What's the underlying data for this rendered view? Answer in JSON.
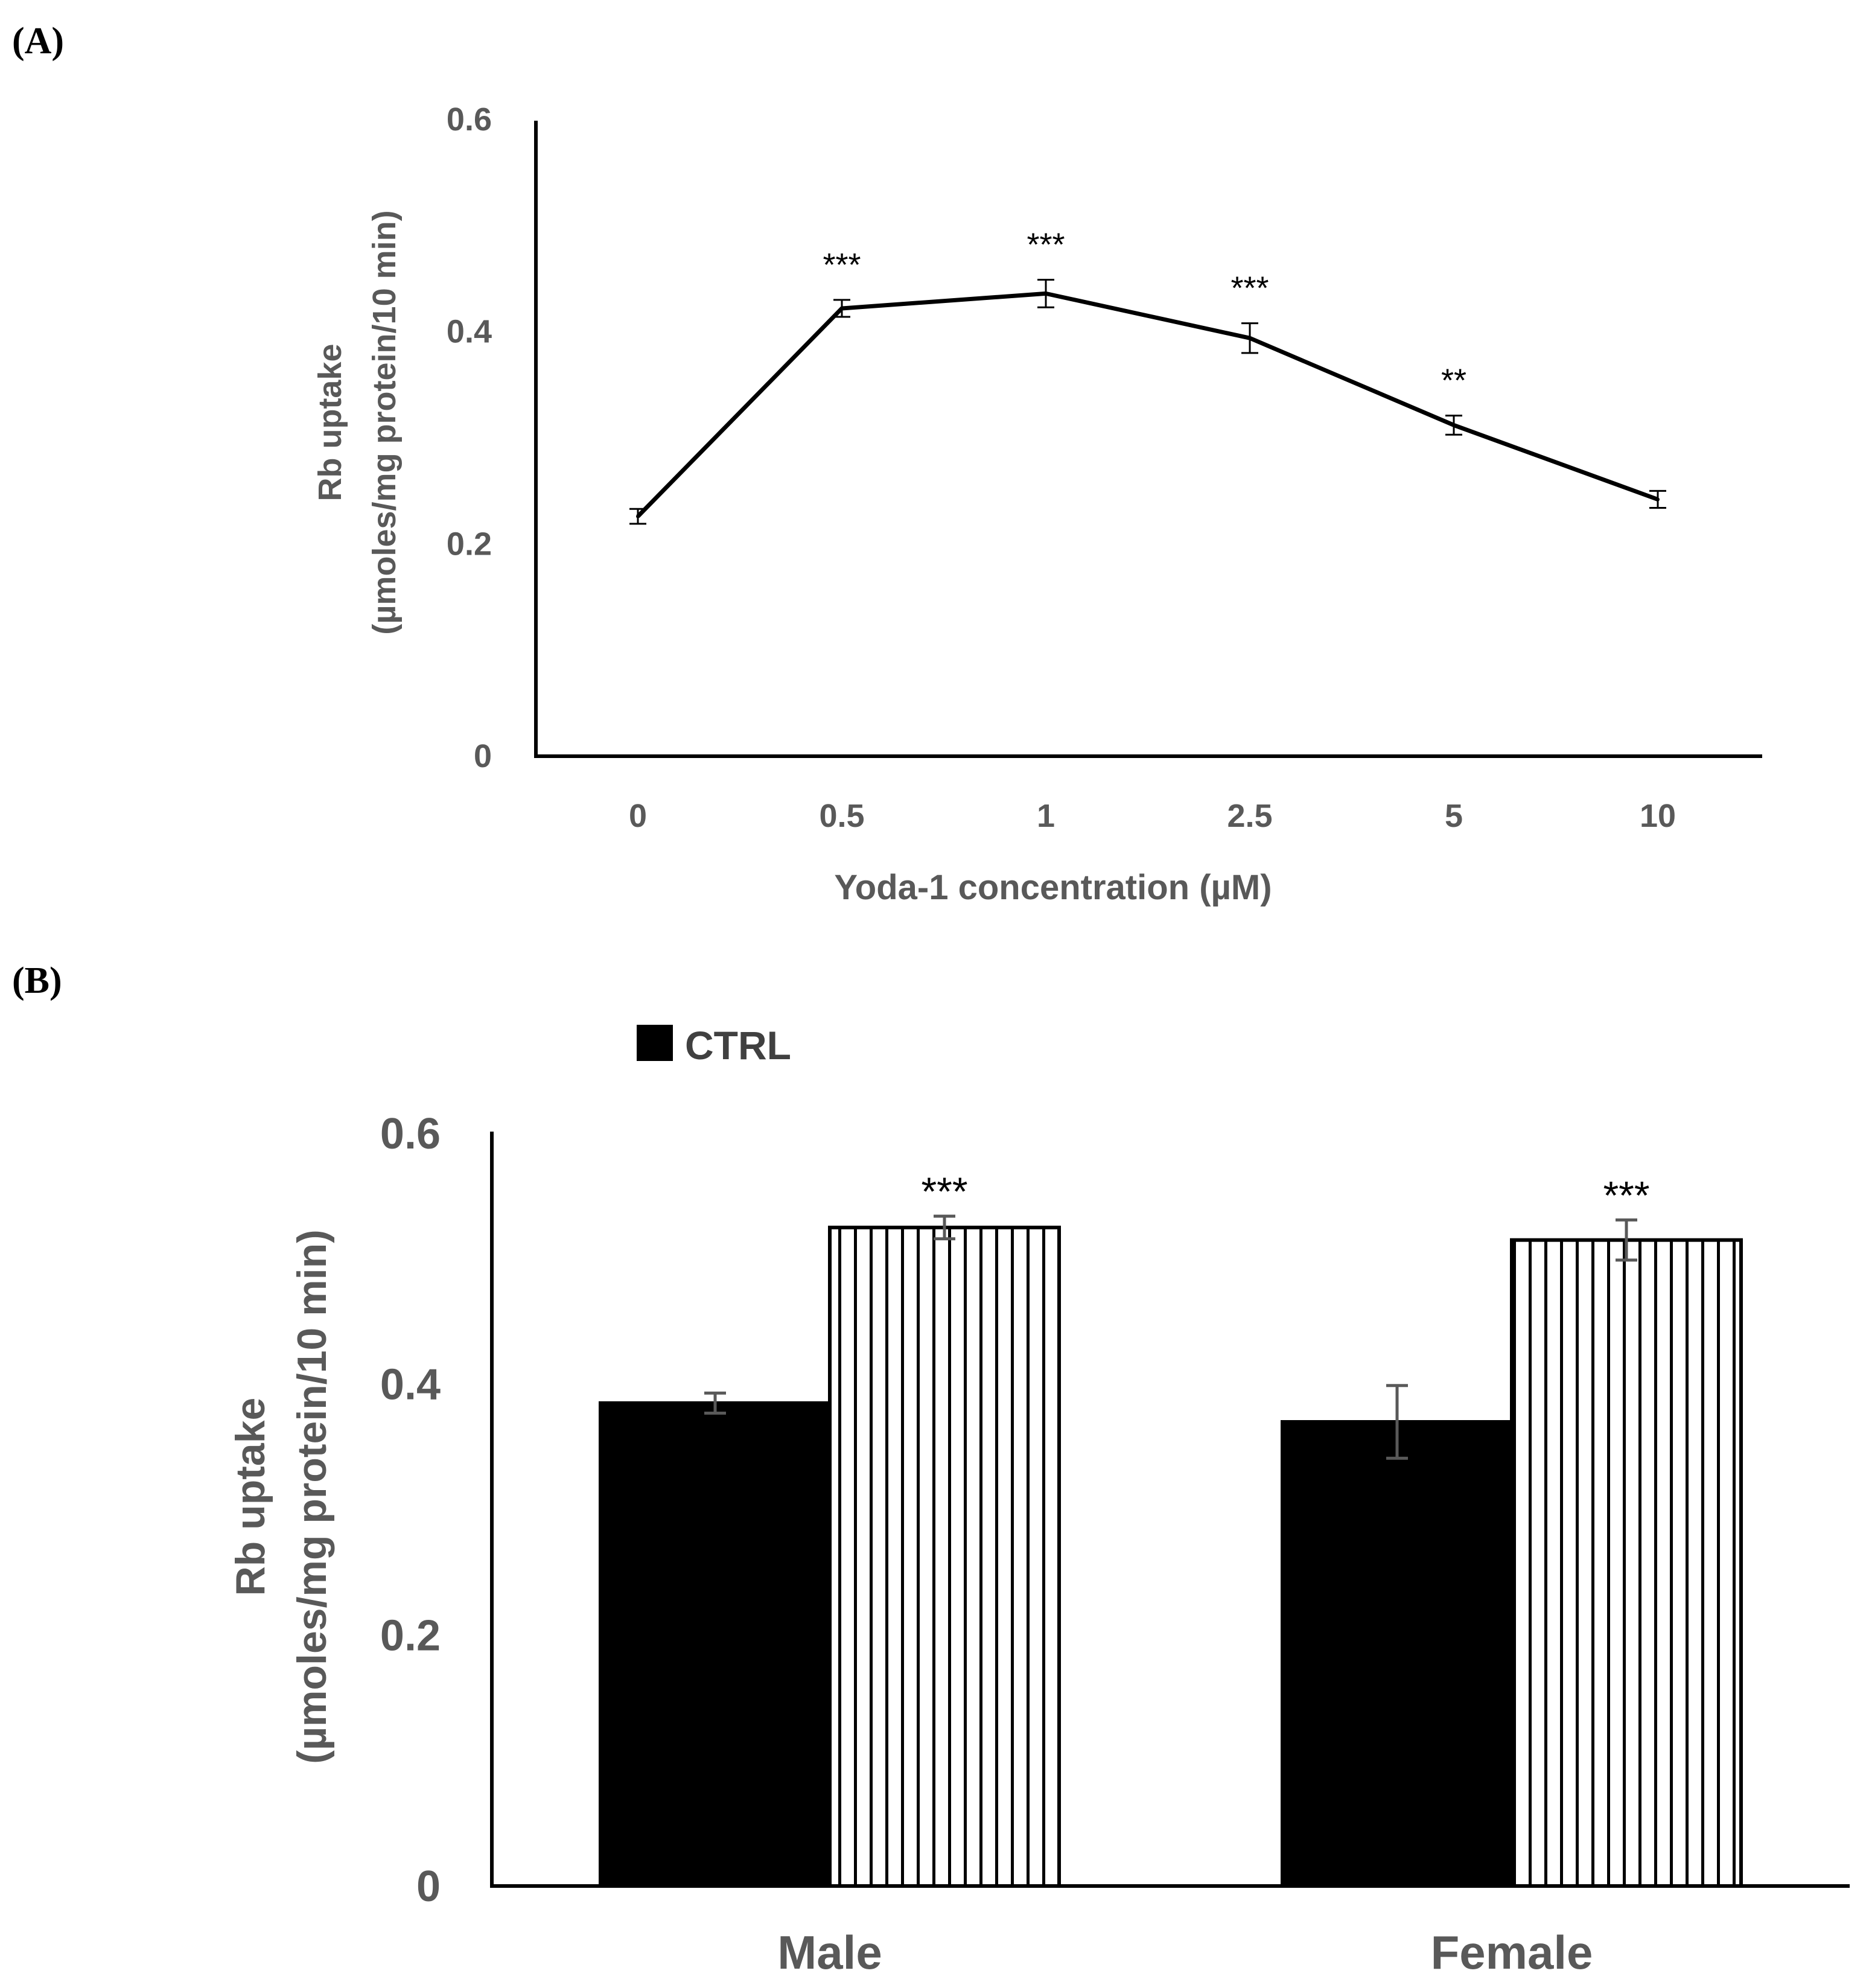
{
  "panels": {
    "a_label": "(A)",
    "b_label": "(B)"
  },
  "chart_data": [
    {
      "type": "line",
      "panel": "(A)",
      "xlabel": "Yoda-1 concentration (µM)",
      "ylabel_line1": "Rb uptake",
      "ylabel_line2": "(µmoles/mg protein/10 min)",
      "ylim": [
        0,
        0.6
      ],
      "yticks": [
        "0",
        "0.2",
        "0.4",
        "0.6"
      ],
      "ytick_values": [
        0,
        0.2,
        0.4,
        0.6
      ],
      "categories": [
        "0",
        "0.5",
        "1",
        "2.5",
        "5",
        "10"
      ],
      "values": [
        0.226,
        0.422,
        0.436,
        0.394,
        0.312,
        0.242
      ],
      "errors": [
        0.007,
        0.008,
        0.013,
        0.014,
        0.009,
        0.008
      ],
      "significance": [
        "",
        "***",
        "***",
        "***",
        "**",
        ""
      ],
      "line_color": "#000000",
      "grid": false
    },
    {
      "type": "bar",
      "panel": "(B)",
      "xlabel": "",
      "ylabel_line1": "Rb uptake",
      "ylabel_line2": "(µmoles/mg protein/10 min)",
      "ylim": [
        0,
        0.6
      ],
      "yticks": [
        "0",
        "0.2",
        "0.4",
        "0.6"
      ],
      "ytick_values": [
        0,
        0.2,
        0.4,
        0.6
      ],
      "categories": [
        "Male",
        "Female"
      ],
      "legend": {
        "position": "top-left",
        "entries": [
          "CTRL"
        ]
      },
      "series": [
        {
          "name": "CTRL",
          "values": [
            0.385,
            0.37
          ],
          "errors": [
            0.008,
            0.029
          ],
          "fill": "#000000",
          "significance": [
            "",
            ""
          ]
        },
        {
          "values": [
            0.525,
            0.515
          ],
          "errors": [
            0.009,
            0.016
          ],
          "fill": "vertical-stripes",
          "significance": [
            "***",
            "***"
          ]
        }
      ],
      "grid": false
    }
  ]
}
